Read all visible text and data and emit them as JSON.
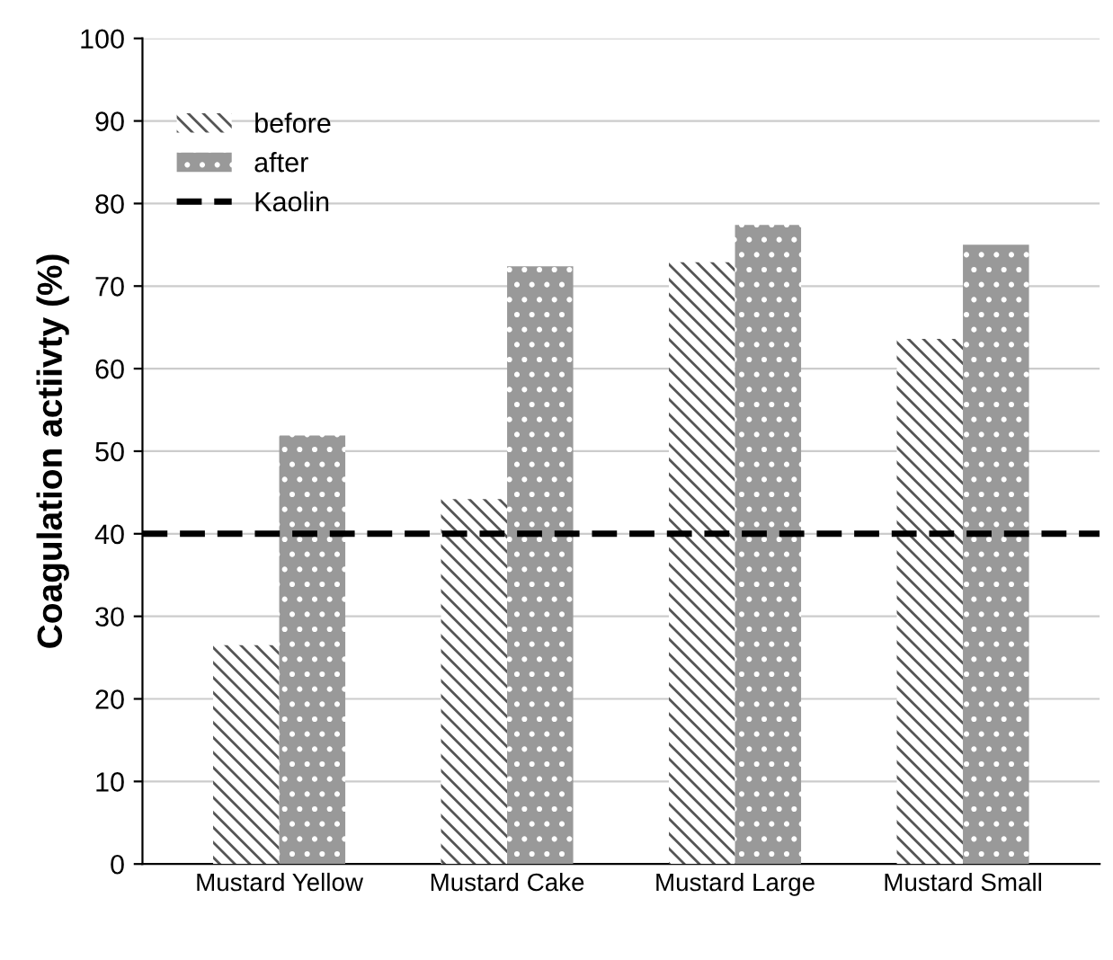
{
  "chart_data": {
    "type": "bar",
    "ylabel": "Coagulation actiivty (%)",
    "categories": [
      "Mustard Yellow",
      "Mustard Cake",
      "Mustard Large",
      "Mustard Small"
    ],
    "series": [
      {
        "name": "before",
        "color": "#ffffff",
        "values": [
          26.5,
          44.2,
          72.9,
          63.6
        ]
      },
      {
        "name": "after",
        "color": "#999999",
        "values": [
          51.9,
          72.4,
          77.4,
          75.0
        ]
      }
    ],
    "ref_lines": [
      {
        "axis": "y",
        "value": 40,
        "label": "Kaolin",
        "color": "#000000",
        "line_style": "dashed"
      }
    ],
    "ylim": [
      0,
      100
    ],
    "yticks": [
      0,
      10,
      20,
      30,
      40,
      50,
      60,
      70,
      80,
      90,
      100
    ],
    "grid": "y",
    "legend": "top left"
  }
}
